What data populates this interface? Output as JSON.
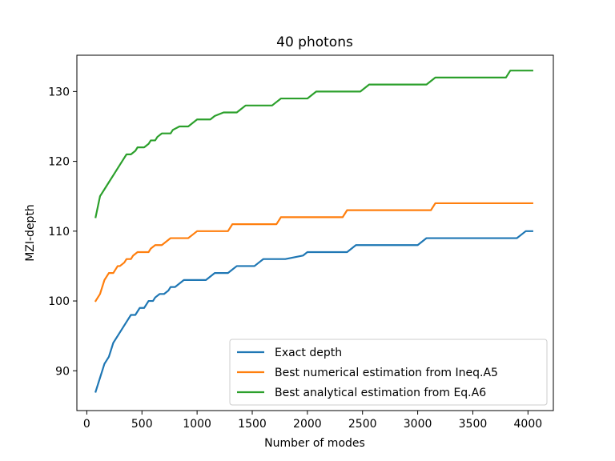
{
  "chart_data": {
    "type": "line",
    "title": "40 photons",
    "xlabel": "Number of modes",
    "ylabel": "MZI-depth",
    "xlim": [
      -90,
      4230
    ],
    "ylim": [
      84.3,
      135.2
    ],
    "xticks": [
      0,
      500,
      1000,
      1500,
      2000,
      2500,
      3000,
      3500,
      4000
    ],
    "yticks": [
      90,
      100,
      110,
      120,
      130
    ],
    "legend_position": "lower right",
    "series": [
      {
        "name": "Exact depth",
        "color": "#1f77b4",
        "x": [
          80,
          100,
          120,
          140,
          160,
          180,
          200,
          220,
          240,
          280,
          320,
          360,
          400,
          440,
          460,
          480,
          520,
          540,
          560,
          600,
          620,
          660,
          700,
          740,
          760,
          800,
          840,
          880,
          920,
          960,
          1000,
          1080,
          1120,
          1160,
          1240,
          1280,
          1320,
          1360,
          1400,
          1440,
          1480,
          1520,
          1560,
          1600,
          1680,
          1800,
          1960,
          2000,
          2040,
          2100,
          2200,
          2300,
          2360,
          2400,
          2440,
          2500,
          2600,
          2700,
          2800,
          2900,
          3000,
          3040,
          3080,
          3120,
          3200,
          3300,
          3400,
          3500,
          3600,
          3700,
          3800,
          3900,
          3940,
          3980,
          4040
        ],
        "y": [
          87,
          88,
          89,
          90,
          91,
          91.5,
          92,
          93,
          94,
          95,
          96,
          97,
          98,
          98,
          98.5,
          99,
          99,
          99.5,
          100,
          100,
          100.5,
          101,
          101,
          101.5,
          102,
          102,
          102.5,
          103,
          103,
          103,
          103,
          103,
          103.5,
          104,
          104,
          104,
          104.5,
          105,
          105,
          105,
          105,
          105,
          105.5,
          106,
          106,
          106,
          106.5,
          107,
          107,
          107,
          107,
          107,
          107,
          107.5,
          108,
          108,
          108,
          108,
          108,
          108,
          108,
          108.5,
          109,
          109,
          109,
          109,
          109,
          109,
          109,
          109,
          109,
          109,
          109.5,
          110,
          110
        ]
      },
      {
        "name": "Best numerical estimation from Ineq.A5",
        "color": "#ff7f0e",
        "x": [
          80,
          120,
          160,
          200,
          240,
          280,
          300,
          340,
          360,
          400,
          420,
          460,
          520,
          560,
          580,
          620,
          680,
          720,
          760,
          800,
          920,
          960,
          1000,
          1040,
          1280,
          1320,
          1720,
          1760,
          2320,
          2360,
          3120,
          3160,
          4040
        ],
        "y": [
          100,
          101,
          103,
          104,
          104,
          105,
          105,
          105.5,
          106,
          106,
          106.5,
          107,
          107,
          107,
          107.5,
          108,
          108,
          108.5,
          109,
          109,
          109,
          109.5,
          110,
          110,
          110,
          111,
          111,
          112,
          112,
          113,
          113,
          114,
          114
        ]
      },
      {
        "name": "Best analytical estimation from Eq.A6",
        "color": "#2ca02c",
        "x": [
          80,
          120,
          160,
          200,
          240,
          280,
          320,
          360,
          400,
          440,
          460,
          480,
          520,
          560,
          580,
          620,
          640,
          680,
          720,
          760,
          780,
          840,
          880,
          920,
          960,
          1000,
          1080,
          1120,
          1160,
          1240,
          1280,
          1360,
          1400,
          1440,
          1560,
          1680,
          1720,
          1760,
          1960,
          2000,
          2040,
          2080,
          2480,
          2520,
          2560,
          3080,
          3120,
          3160,
          3200,
          3800,
          3840,
          4040
        ],
        "y": [
          112,
          115,
          116,
          117,
          118,
          119,
          120,
          121,
          121,
          121.5,
          122,
          122,
          122,
          122.5,
          123,
          123,
          123.5,
          124,
          124,
          124,
          124.5,
          125,
          125,
          125,
          125.5,
          126,
          126,
          126,
          126.5,
          127,
          127,
          127,
          127.5,
          128,
          128,
          128,
          128.5,
          129,
          129,
          129,
          129.5,
          130,
          130,
          130.5,
          131,
          131,
          131.5,
          132,
          132,
          132,
          133,
          133
        ]
      }
    ]
  }
}
